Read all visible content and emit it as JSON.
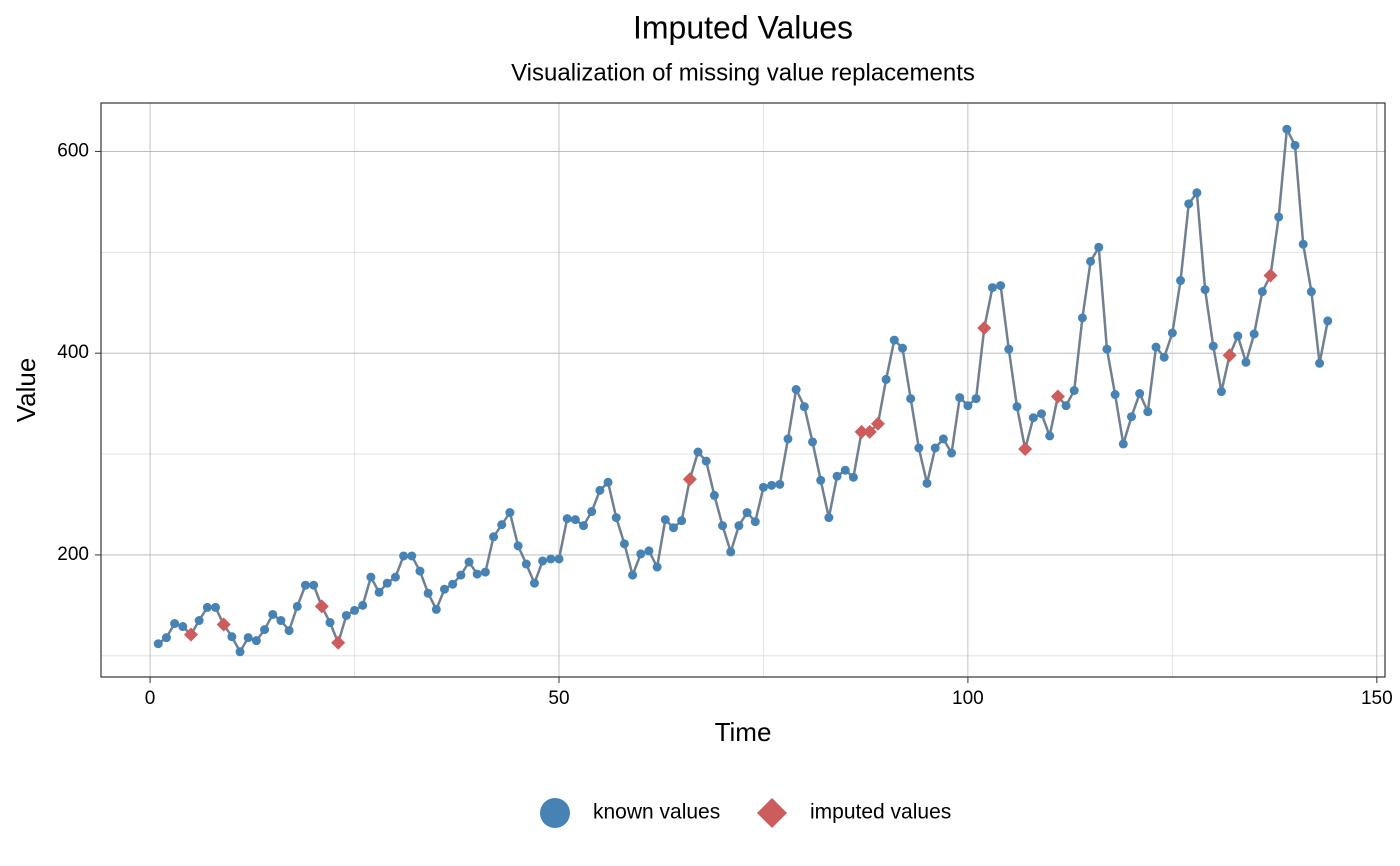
{
  "chart_data": {
    "type": "line",
    "title": "Imputed Values",
    "subtitle": "Visualization of missing value replacements",
    "x_label": "Time",
    "y_label": "Value",
    "line_color": "#708090",
    "x": [
      1,
      2,
      3,
      4,
      5,
      6,
      7,
      8,
      9,
      10,
      11,
      12,
      13,
      14,
      15,
      16,
      17,
      18,
      19,
      20,
      21,
      22,
      23,
      24,
      25,
      26,
      27,
      28,
      29,
      30,
      31,
      32,
      33,
      34,
      35,
      36,
      37,
      38,
      39,
      40,
      41,
      42,
      43,
      44,
      45,
      46,
      47,
      48,
      49,
      50,
      51,
      52,
      53,
      54,
      55,
      56,
      57,
      58,
      59,
      60,
      61,
      62,
      63,
      64,
      65,
      66,
      67,
      68,
      69,
      70,
      71,
      72,
      73,
      74,
      75,
      76,
      77,
      78,
      79,
      80,
      81,
      82,
      83,
      84,
      85,
      86,
      87,
      88,
      89,
      90,
      91,
      92,
      93,
      94,
      95,
      96,
      97,
      98,
      99,
      100,
      101,
      102,
      103,
      104,
      105,
      106,
      107,
      108,
      109,
      110,
      111,
      112,
      113,
      114,
      115,
      116,
      117,
      118,
      119,
      120,
      121,
      122,
      123,
      124,
      125,
      126,
      127,
      128,
      129,
      130,
      131,
      132,
      133,
      134,
      135,
      136,
      137,
      138,
      139,
      140,
      141,
      142,
      143,
      144
    ],
    "series": [
      {
        "name": "known values",
        "color": "#4682b4",
        "marker": "circle",
        "values": [
          112,
          118,
          132,
          129,
          null,
          135,
          148,
          148,
          null,
          119,
          104,
          118,
          115,
          126,
          141,
          135,
          125,
          149,
          170,
          170,
          null,
          133,
          null,
          140,
          145,
          150,
          178,
          163,
          172,
          178,
          199,
          199,
          184,
          162,
          146,
          166,
          171,
          180,
          193,
          181,
          183,
          218,
          230,
          242,
          209,
          191,
          172,
          194,
          196,
          196,
          236,
          235,
          229,
          243,
          264,
          272,
          237,
          211,
          180,
          201,
          204,
          188,
          235,
          227,
          234,
          null,
          302,
          293,
          259,
          229,
          203,
          229,
          242,
          233,
          267,
          269,
          270,
          315,
          364,
          347,
          312,
          274,
          237,
          278,
          284,
          277,
          null,
          null,
          null,
          374,
          413,
          405,
          355,
          306,
          271,
          306,
          315,
          301,
          356,
          348,
          355,
          null,
          465,
          467,
          404,
          347,
          null,
          336,
          340,
          318,
          null,
          348,
          363,
          435,
          491,
          505,
          404,
          359,
          310,
          337,
          360,
          342,
          406,
          396,
          420,
          472,
          548,
          559,
          463,
          407,
          362,
          null,
          417,
          391,
          419,
          461,
          null,
          535,
          622,
          606,
          508,
          461,
          390,
          432
        ]
      },
      {
        "name": "imputed values",
        "color": "#cd5c5c",
        "marker": "diamond",
        "values": [
          null,
          null,
          null,
          null,
          121,
          null,
          null,
          null,
          131,
          null,
          null,
          null,
          null,
          null,
          null,
          null,
          null,
          null,
          null,
          null,
          149,
          null,
          113,
          null,
          null,
          null,
          null,
          null,
          null,
          null,
          null,
          null,
          null,
          null,
          null,
          null,
          null,
          null,
          null,
          null,
          null,
          null,
          null,
          null,
          null,
          null,
          null,
          null,
          null,
          null,
          null,
          null,
          null,
          null,
          null,
          null,
          null,
          null,
          null,
          null,
          null,
          null,
          null,
          null,
          null,
          275,
          null,
          null,
          null,
          null,
          null,
          null,
          null,
          null,
          null,
          null,
          null,
          null,
          null,
          null,
          null,
          null,
          null,
          null,
          null,
          null,
          322,
          322,
          330,
          null,
          null,
          null,
          null,
          null,
          null,
          null,
          null,
          null,
          null,
          null,
          null,
          425,
          null,
          null,
          null,
          null,
          305,
          null,
          null,
          null,
          357,
          null,
          null,
          null,
          null,
          null,
          null,
          null,
          null,
          null,
          null,
          null,
          null,
          null,
          null,
          null,
          null,
          null,
          null,
          null,
          null,
          398,
          null,
          null,
          null,
          null,
          477,
          null,
          null,
          null,
          null,
          null,
          null,
          null
        ]
      }
    ],
    "xlim": [
      -6,
      151
    ],
    "xticks": [
      0,
      50,
      100,
      150
    ],
    "x_minor_ticks": [
      25,
      75,
      125
    ],
    "ylim": [
      79,
      648
    ],
    "yticks": [
      200,
      400,
      600
    ],
    "y_minor_ticks": [
      100,
      300,
      500
    ],
    "grid": true,
    "legend": "bottom"
  }
}
